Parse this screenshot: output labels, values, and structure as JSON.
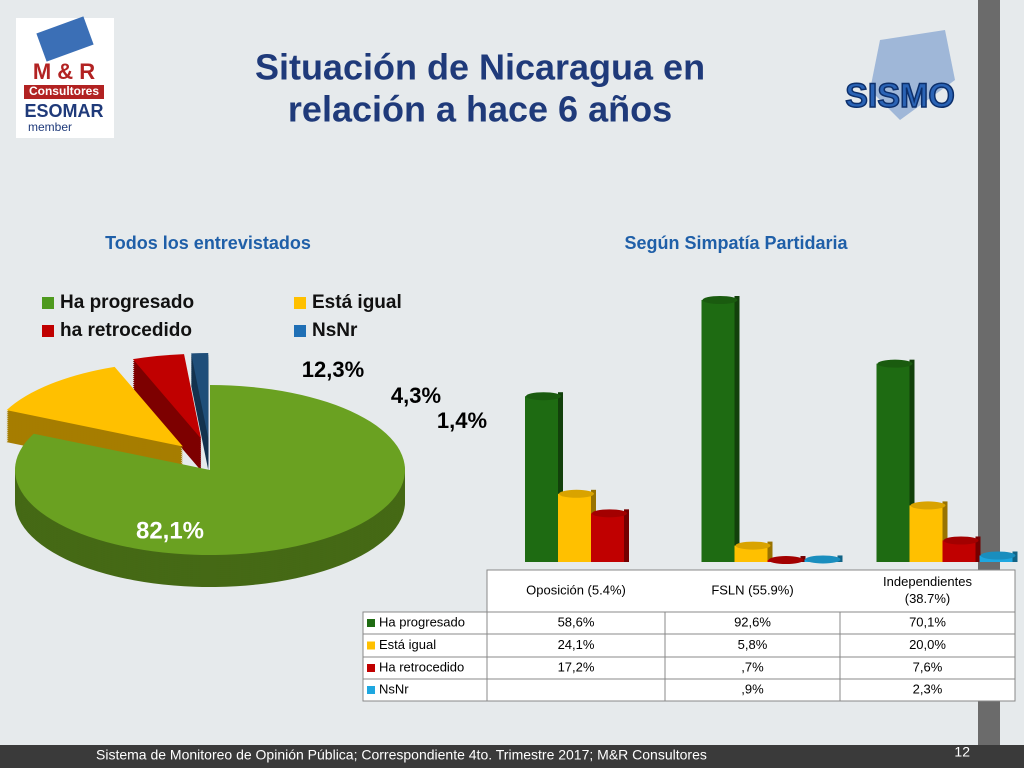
{
  "header": {
    "title": [
      "Situación de Nicaragua en",
      "relación a hace 6 años"
    ],
    "logo_left": [
      "M & R",
      "Consultores",
      "ESOMAR",
      "member"
    ],
    "logo_right": "SISMO"
  },
  "chart_data": [
    {
      "type": "pie",
      "title": "Todos los entrevistados",
      "categories": [
        "Ha progresado",
        "Está igual",
        "ha retrocedido",
        "NsNr"
      ],
      "values": [
        82.1,
        12.3,
        4.3,
        1.4
      ],
      "value_labels": [
        "82,1%",
        "12,3%",
        "4,3%",
        "1,4%"
      ],
      "colors": [
        "#6aa121",
        "#ffc000",
        "#c00000",
        "#1f4e79"
      ],
      "legend_colors": [
        "#4e9a1e",
        "#ffc000",
        "#c00000",
        "#1f6fb5"
      ]
    },
    {
      "type": "bar",
      "title": "Según Simpatía Partidaria",
      "categories": [
        "Oposición (5.4%)",
        "FSLN (55.9%)",
        "Independientes (38.7%)"
      ],
      "series": [
        {
          "name": "Ha progresado",
          "color": "#1e6b12",
          "values": [
            58.6,
            92.6,
            70.1
          ],
          "value_labels": [
            "58,6%",
            "92,6%",
            "70,1%"
          ]
        },
        {
          "name": "Está igual",
          "color": "#ffc000",
          "values": [
            24.1,
            5.8,
            20.0
          ],
          "value_labels": [
            "24,1%",
            "5,8%",
            "20,0%"
          ]
        },
        {
          "name": "Ha retrocedido",
          "color": "#c00000",
          "values": [
            17.2,
            0.7,
            7.6
          ],
          "value_labels": [
            "17,2%",
            ",7%",
            "7,6%"
          ]
        },
        {
          "name": "NsNr",
          "color": "#1ea7e0",
          "values": [
            null,
            0.9,
            2.3
          ],
          "value_labels": [
            null,
            ",9%",
            "2,3%"
          ]
        }
      ]
    }
  ],
  "footer": {
    "text": "Sistema de Monitoreo de Opinión Pública; Correspondiente 4to. Trimestre 2017; M&R Consultores",
    "page": "12"
  }
}
